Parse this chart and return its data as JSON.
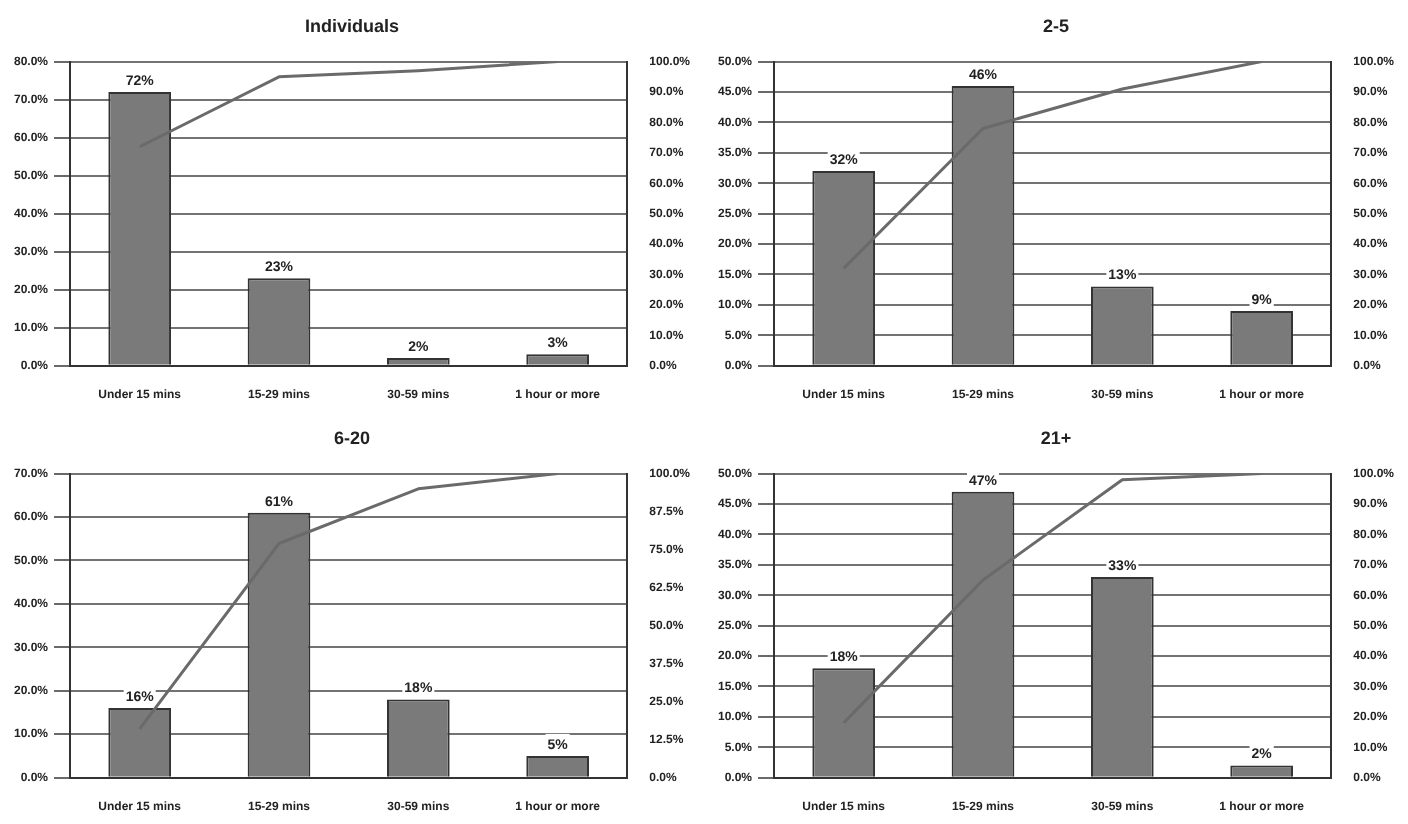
{
  "chart_data": [
    {
      "type": "bar",
      "title": "Individuals",
      "categories": [
        "Under 15 mins",
        "15-29 mins",
        "30-59 mins",
        "1 hour or more"
      ],
      "grid": "y",
      "legend": false,
      "series": [
        {
          "color": "#7a7a7a",
          "values": [
            72,
            23,
            2,
            3
          ],
          "value_labels": [
            "72%",
            "23%",
            "2%",
            "3%"
          ]
        },
        {
          "type": "line",
          "axis": "y2",
          "color": "#6a6a6a",
          "values": [
            72,
            95,
            97,
            100
          ]
        }
      ],
      "ylim": [
        0,
        80
      ],
      "yticks": [
        {
          "value": 0,
          "label": "0.0%"
        },
        {
          "value": 10,
          "label": "10.0%"
        },
        {
          "value": 20,
          "label": "20.0%"
        },
        {
          "value": 30,
          "label": "30.0%"
        },
        {
          "value": 40,
          "label": "40.0%"
        },
        {
          "value": 50,
          "label": "50.0%"
        },
        {
          "value": 60,
          "label": "60.0%"
        },
        {
          "value": 70,
          "label": "70.0%"
        },
        {
          "value": 80,
          "label": "80.0%"
        }
      ],
      "y2lim": [
        0,
        100
      ],
      "y2ticks": [
        {
          "value": 0,
          "label": "0.0%"
        },
        {
          "value": 10,
          "label": "10.0%"
        },
        {
          "value": 20,
          "label": "20.0%"
        },
        {
          "value": 30,
          "label": "30.0%"
        },
        {
          "value": 40,
          "label": "40.0%"
        },
        {
          "value": 50,
          "label": "50.0%"
        },
        {
          "value": 60,
          "label": "60.0%"
        },
        {
          "value": 70,
          "label": "70.0%"
        },
        {
          "value": 80,
          "label": "80.0%"
        },
        {
          "value": 90,
          "label": "90.0%"
        },
        {
          "value": 100,
          "label": "100.0%"
        }
      ]
    },
    {
      "type": "bar",
      "title": "2-5",
      "categories": [
        "Under 15 mins",
        "15-29 mins",
        "30-59 mins",
        "1 hour or more"
      ],
      "grid": "y",
      "legend": false,
      "series": [
        {
          "color": "#7a7a7a",
          "values": [
            32,
            46,
            13,
            9
          ],
          "value_labels": [
            "32%",
            "46%",
            "13%",
            "9%"
          ]
        },
        {
          "type": "line",
          "axis": "y2",
          "color": "#6a6a6a",
          "values": [
            32,
            78,
            91,
            100
          ]
        }
      ],
      "ylim": [
        0,
        50
      ],
      "yticks": [
        {
          "value": 0,
          "label": "0.0%"
        },
        {
          "value": 5,
          "label": "5.0%"
        },
        {
          "value": 10,
          "label": "10.0%"
        },
        {
          "value": 15,
          "label": "15.0%"
        },
        {
          "value": 20,
          "label": "20.0%"
        },
        {
          "value": 25,
          "label": "25.0%"
        },
        {
          "value": 30,
          "label": "30.0%"
        },
        {
          "value": 35,
          "label": "35.0%"
        },
        {
          "value": 40,
          "label": "40.0%"
        },
        {
          "value": 45,
          "label": "45.0%"
        },
        {
          "value": 50,
          "label": "50.0%"
        }
      ],
      "y2lim": [
        0,
        100
      ],
      "y2ticks": [
        {
          "value": 0,
          "label": "0.0%"
        },
        {
          "value": 10,
          "label": "10.0%"
        },
        {
          "value": 20,
          "label": "20.0%"
        },
        {
          "value": 30,
          "label": "30.0%"
        },
        {
          "value": 40,
          "label": "40.0%"
        },
        {
          "value": 50,
          "label": "50.0%"
        },
        {
          "value": 60,
          "label": "60.0%"
        },
        {
          "value": 70,
          "label": "70.0%"
        },
        {
          "value": 80,
          "label": "80.0%"
        },
        {
          "value": 90,
          "label": "90.0%"
        },
        {
          "value": 100,
          "label": "100.0%"
        }
      ]
    },
    {
      "type": "bar",
      "title": "6-20",
      "categories": [
        "Under 15 mins",
        "15-29 mins",
        "30-59 mins",
        "1 hour or more"
      ],
      "grid": "y",
      "legend": false,
      "series": [
        {
          "color": "#7a7a7a",
          "values": [
            16,
            61,
            18,
            5
          ],
          "value_labels": [
            "16%",
            "61%",
            "18%",
            "5%"
          ]
        },
        {
          "type": "line",
          "axis": "y2",
          "color": "#6a6a6a",
          "values": [
            16,
            77,
            95,
            100
          ]
        }
      ],
      "ylim": [
        0,
        70
      ],
      "yticks": [
        {
          "value": 0,
          "label": "0.0%"
        },
        {
          "value": 10,
          "label": "10.0%"
        },
        {
          "value": 20,
          "label": "20.0%"
        },
        {
          "value": 30,
          "label": "30.0%"
        },
        {
          "value": 40,
          "label": "40.0%"
        },
        {
          "value": 50,
          "label": "50.0%"
        },
        {
          "value": 60,
          "label": "60.0%"
        },
        {
          "value": 70,
          "label": "70.0%"
        }
      ],
      "y2lim": [
        0,
        100
      ],
      "y2ticks": [
        {
          "value": 0,
          "label": "0.0%"
        },
        {
          "value": 12.5,
          "label": "12.5%"
        },
        {
          "value": 25,
          "label": "25.0%"
        },
        {
          "value": 37.5,
          "label": "37.5%"
        },
        {
          "value": 50,
          "label": "50.0%"
        },
        {
          "value": 62.5,
          "label": "62.5%"
        },
        {
          "value": 75,
          "label": "75.0%"
        },
        {
          "value": 87.5,
          "label": "87.5%"
        },
        {
          "value": 100,
          "label": "100.0%"
        }
      ]
    },
    {
      "type": "bar",
      "title": "21+",
      "categories": [
        "Under 15 mins",
        "15-29 mins",
        "30-59 mins",
        "1 hour or more"
      ],
      "grid": "y",
      "legend": false,
      "series": [
        {
          "color": "#7a7a7a",
          "values": [
            18,
            47,
            33,
            2
          ],
          "value_labels": [
            "18%",
            "47%",
            "33%",
            "2%"
          ]
        },
        {
          "type": "line",
          "axis": "y2",
          "color": "#6a6a6a",
          "values": [
            18,
            65,
            98,
            100
          ]
        }
      ],
      "ylim": [
        0,
        50
      ],
      "yticks": [
        {
          "value": 0,
          "label": "0.0%"
        },
        {
          "value": 5,
          "label": "5.0%"
        },
        {
          "value": 10,
          "label": "10.0%"
        },
        {
          "value": 15,
          "label": "15.0%"
        },
        {
          "value": 20,
          "label": "20.0%"
        },
        {
          "value": 25,
          "label": "25.0%"
        },
        {
          "value": 30,
          "label": "30.0%"
        },
        {
          "value": 35,
          "label": "35.0%"
        },
        {
          "value": 40,
          "label": "40.0%"
        },
        {
          "value": 45,
          "label": "45.0%"
        },
        {
          "value": 50,
          "label": "50.0%"
        }
      ],
      "y2lim": [
        0,
        100
      ],
      "y2ticks": [
        {
          "value": 0,
          "label": "0.0%"
        },
        {
          "value": 10,
          "label": "10.0%"
        },
        {
          "value": 20,
          "label": "20.0%"
        },
        {
          "value": 30,
          "label": "30.0%"
        },
        {
          "value": 40,
          "label": "40.0%"
        },
        {
          "value": 50,
          "label": "50.0%"
        },
        {
          "value": 60,
          "label": "60.0%"
        },
        {
          "value": 70,
          "label": "70.0%"
        },
        {
          "value": 80,
          "label": "80.0%"
        },
        {
          "value": 90,
          "label": "90.0%"
        },
        {
          "value": 100,
          "label": "100.0%"
        }
      ]
    }
  ]
}
